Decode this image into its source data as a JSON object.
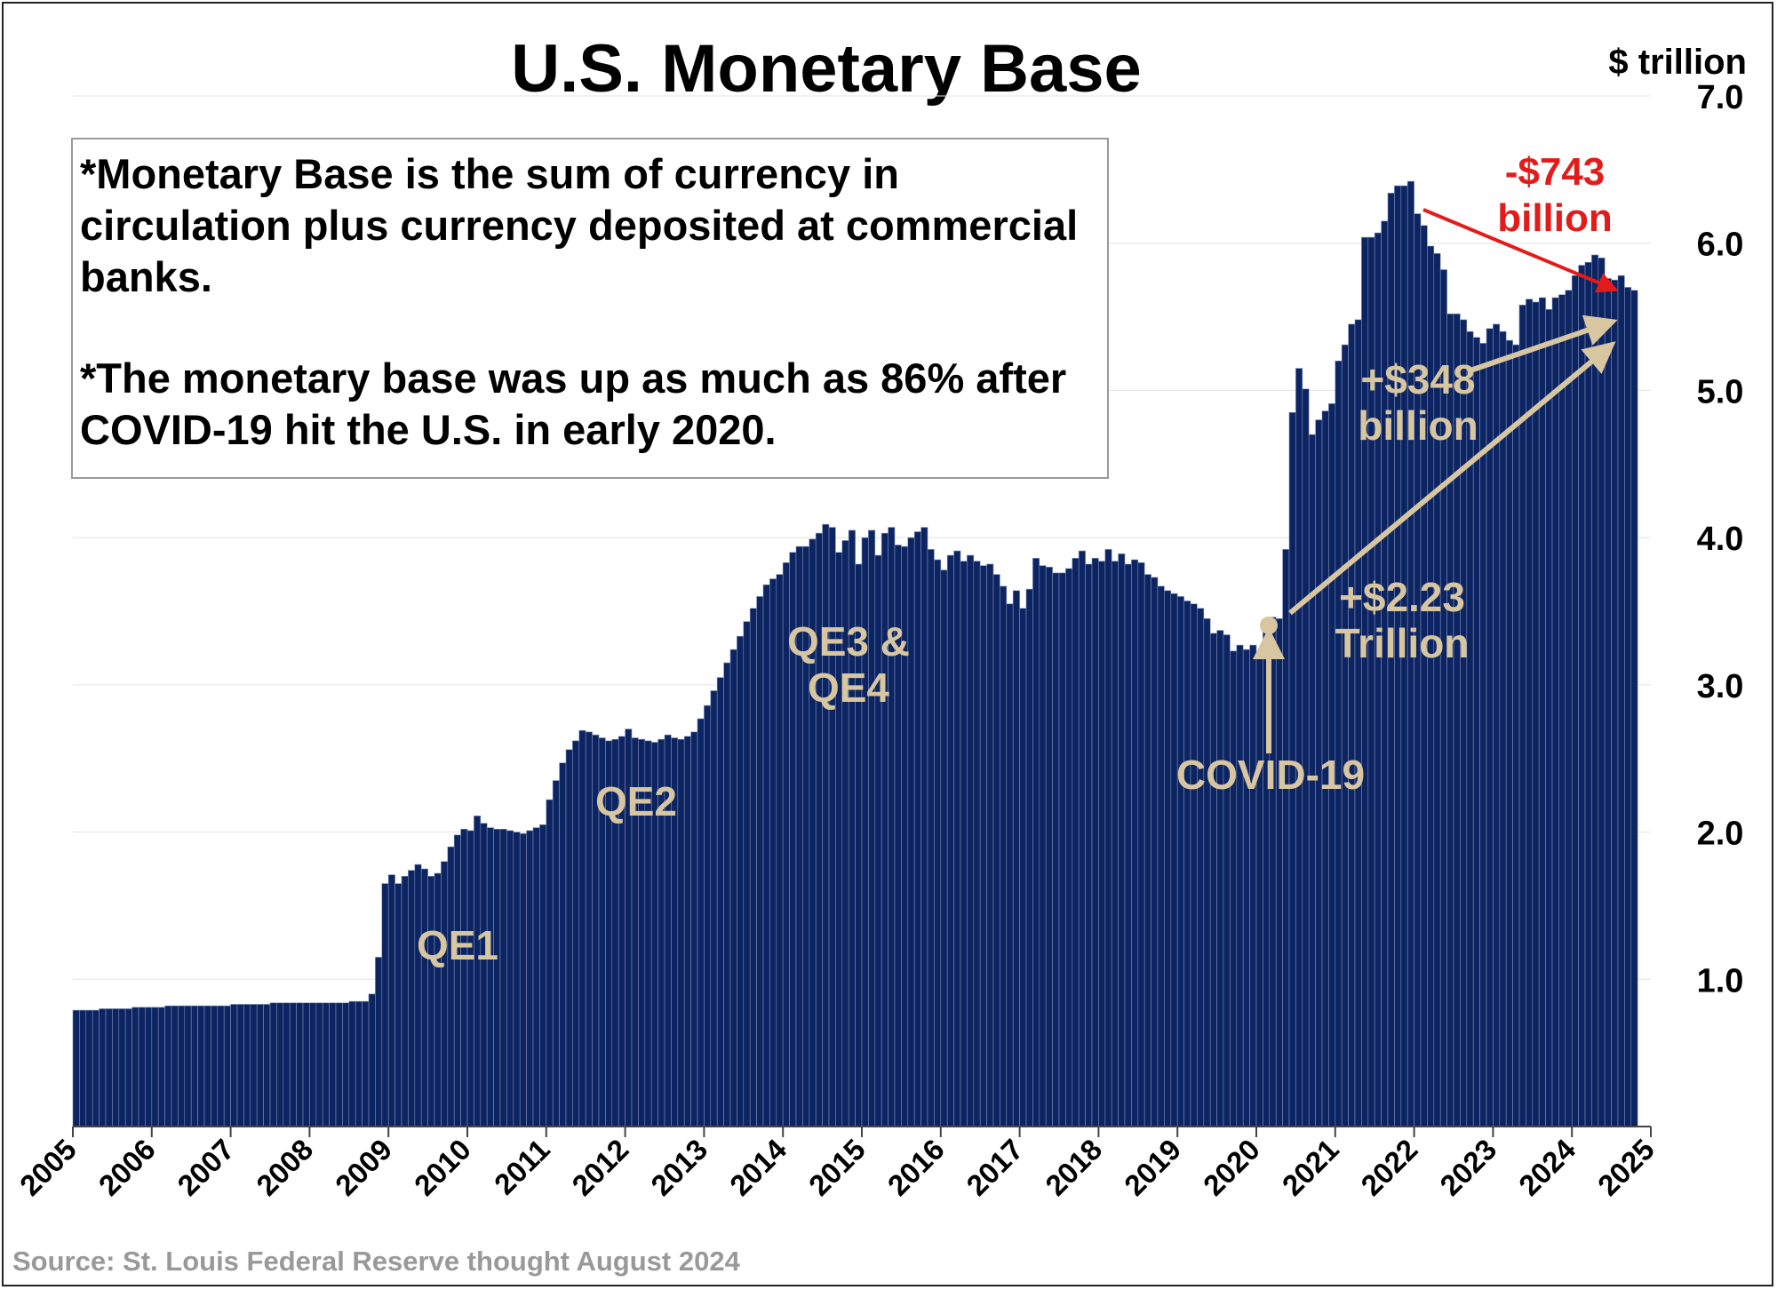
{
  "title": "U.S. Monetary Base",
  "unit_label": "$ trillion",
  "notes": [
    "*Monetary Base is the sum of currency in circulation plus currency deposited at commercial banks.",
    "*The monetary base was up as much as 86% after COVID-19 hit the U.S. in early 2020."
  ],
  "source": "Source: St. Louis Federal Reserve thought August 2024",
  "colors": {
    "bar": "#0c2462",
    "annotation": "#d8c6a0",
    "decline": "#e41b1b"
  },
  "annotations": {
    "qe1": "QE1",
    "qe2": "QE2",
    "qe34_line1": "QE3 &",
    "qe34_line2": "QE4",
    "covid": "COVID-19",
    "covid_gain_line1": "+$2.23",
    "covid_gain_line2": "Trillion",
    "recent_gain_line1": "+$348",
    "recent_gain_line2": "billion",
    "decline_line1": "-$743",
    "decline_line2": "billion"
  },
  "chart_data": {
    "type": "bar",
    "title": "U.S. Monetary Base",
    "ylabel": "$ trillion",
    "xlabel": "",
    "ylim": [
      0,
      7.0
    ],
    "xlim": [
      2005,
      2025
    ],
    "yticks": [
      "1.0",
      "2.0",
      "3.0",
      "4.0",
      "5.0",
      "6.0",
      "7.0"
    ],
    "xticks": [
      "2005",
      "2006",
      "2007",
      "2008",
      "2009",
      "2010",
      "2011",
      "2012",
      "2013",
      "2014",
      "2015",
      "2016",
      "2017",
      "2018",
      "2019",
      "2020",
      "2021",
      "2022",
      "2023",
      "2024",
      "2025"
    ],
    "frequency": "monthly",
    "start": "2005-01",
    "series": [
      {
        "name": "Monetary Base",
        "values": [
          0.79,
          0.79,
          0.79,
          0.79,
          0.8,
          0.8,
          0.8,
          0.8,
          0.8,
          0.81,
          0.81,
          0.81,
          0.81,
          0.81,
          0.82,
          0.82,
          0.82,
          0.82,
          0.82,
          0.82,
          0.82,
          0.82,
          0.82,
          0.82,
          0.83,
          0.83,
          0.83,
          0.83,
          0.83,
          0.83,
          0.84,
          0.84,
          0.84,
          0.84,
          0.84,
          0.84,
          0.84,
          0.84,
          0.84,
          0.84,
          0.84,
          0.84,
          0.85,
          0.85,
          0.85,
          0.9,
          1.15,
          1.65,
          1.71,
          1.65,
          1.7,
          1.74,
          1.78,
          1.75,
          1.7,
          1.72,
          1.8,
          1.9,
          1.98,
          2.02,
          2.01,
          2.11,
          2.06,
          2.03,
          2.02,
          2.02,
          2.01,
          2.0,
          1.99,
          2.01,
          2.03,
          2.05,
          2.22,
          2.35,
          2.47,
          2.56,
          2.62,
          2.69,
          2.68,
          2.66,
          2.64,
          2.62,
          2.63,
          2.65,
          2.7,
          2.64,
          2.63,
          2.62,
          2.61,
          2.63,
          2.66,
          2.64,
          2.63,
          2.65,
          2.68,
          2.77,
          2.86,
          2.96,
          3.05,
          3.15,
          3.24,
          3.33,
          3.43,
          3.52,
          3.6,
          3.68,
          3.72,
          3.75,
          3.83,
          3.9,
          3.94,
          3.94,
          3.99,
          4.03,
          4.09,
          4.07,
          3.9,
          3.98,
          4.05,
          3.82,
          4.0,
          4.05,
          3.88,
          4.03,
          4.07,
          3.95,
          3.94,
          4.0,
          4.04,
          4.07,
          3.92,
          3.85,
          3.78,
          3.88,
          3.91,
          3.84,
          3.88,
          3.84,
          3.81,
          3.82,
          3.75,
          3.67,
          3.55,
          3.64,
          3.52,
          3.65,
          3.86,
          3.81,
          3.8,
          3.76,
          3.76,
          3.79,
          3.86,
          3.91,
          3.82,
          3.86,
          3.84,
          3.92,
          3.84,
          3.89,
          3.82,
          3.85,
          3.83,
          3.75,
          3.73,
          3.67,
          3.64,
          3.62,
          3.6,
          3.57,
          3.55,
          3.52,
          3.45,
          3.35,
          3.37,
          3.34,
          3.23,
          3.27,
          3.24,
          3.27,
          3.21,
          3.4,
          3.46,
          3.45,
          3.92,
          4.85,
          5.15,
          5.01,
          4.7,
          4.8,
          4.86,
          4.91,
          5.2,
          5.31,
          5.45,
          5.48,
          6.04,
          6.04,
          6.07,
          6.15,
          6.34,
          6.39,
          6.39,
          6.42,
          6.2,
          6.12,
          5.98,
          5.93,
          5.82,
          5.52,
          5.52,
          5.48,
          5.4,
          5.36,
          5.32,
          5.42,
          5.45,
          5.4,
          5.34,
          5.31,
          5.58,
          5.62,
          5.6,
          5.63,
          5.55,
          5.63,
          5.65,
          5.68,
          5.78,
          5.85,
          5.87,
          5.92,
          5.9,
          5.76,
          5.75,
          5.78,
          5.7,
          5.68
        ]
      }
    ]
  }
}
